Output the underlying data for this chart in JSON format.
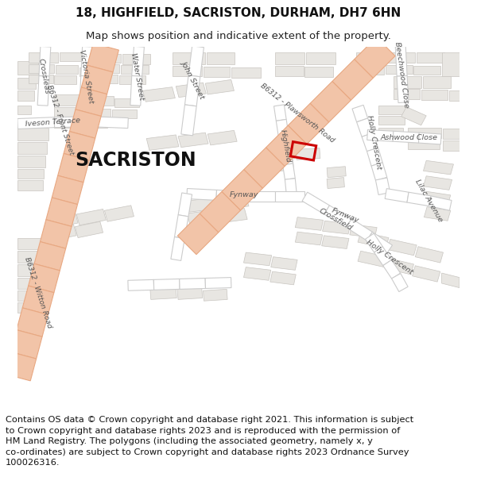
{
  "title_line1": "18, HIGHFIELD, SACRISTON, DURHAM, DH7 6HN",
  "title_line2": "Map shows position and indicative extent of the property.",
  "footer_lines": "Contains OS data © Crown copyright and database right 2021. This information is subject\nto Crown copyright and database rights 2023 and is reproduced with the permission of\nHM Land Registry. The polygons (including the associated geometry, namely x, y\nco-ordinates) are subject to Crown copyright and database rights 2023 Ordnance Survey\n100026316.",
  "map_bg": "#f5f4f2",
  "road_main_fill": "#f2c4a8",
  "road_main_edge": "#e8a882",
  "road_minor_fill": "#ffffff",
  "road_minor_edge": "#cccccc",
  "building_fill": "#e8e6e2",
  "building_edge": "#c8c5c0",
  "plot_color": "#cc0000",
  "label_color": "#555555",
  "fig_bg": "#ffffff",
  "sacriston_label": "SACRISTON",
  "title_fontsize": 11,
  "subtitle_fontsize": 9.5,
  "footer_fontsize": 8.2,
  "road_label_fs": 6.8,
  "road_label_color": "#555555"
}
